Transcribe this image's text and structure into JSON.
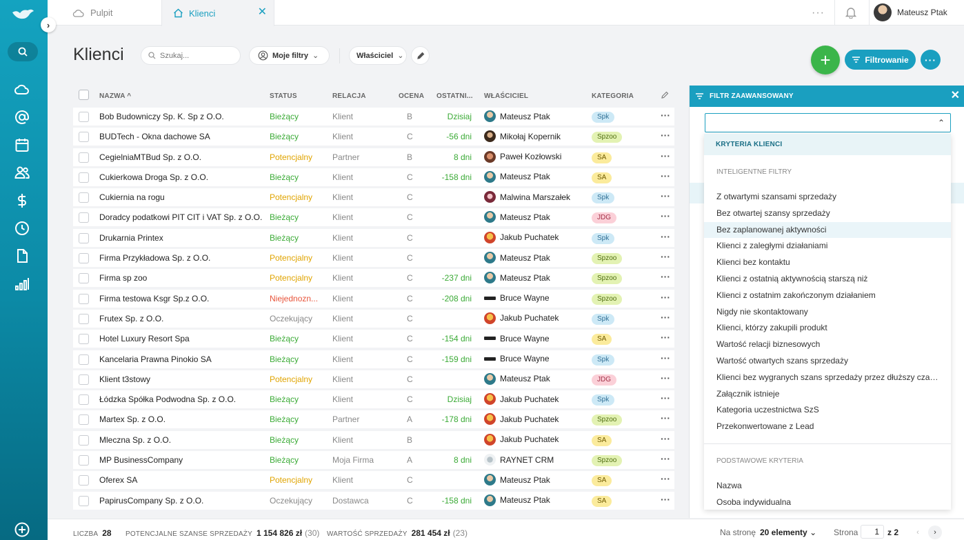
{
  "tabs": {
    "dashboard": "Pulpit",
    "clients": "Klienci"
  },
  "user": {
    "name": "Mateusz Ptak"
  },
  "page": {
    "title": "Klienci"
  },
  "search": {
    "placeholder": "Szukaj..."
  },
  "toolbar": {
    "my_filters": "Moje filtry",
    "owner": "Właściciel",
    "filter_button": "Filtrowanie"
  },
  "table": {
    "headers": {
      "name": "NAZWA",
      "status": "STATUS",
      "relation": "RELACJA",
      "grade": "OCENA",
      "last": "OSTATNI...",
      "owner": "WŁAŚCICIEL",
      "category": "KATEGORIA"
    },
    "rows": [
      {
        "name": "Bob Budowniczy Sp. K. Sp z O.O.",
        "status": "Bieżący",
        "relation": "Klient",
        "grade": "B",
        "last": "Dzisiaj",
        "owner": "Mateusz Ptak",
        "category": "Spk"
      },
      {
        "name": "BUDTech - Okna dachowe SA",
        "status": "Bieżący",
        "relation": "Klient",
        "grade": "C",
        "last": "-56 dni",
        "owner": "Mikołaj Kopernik",
        "category": "Spzoo"
      },
      {
        "name": "CegielniaMTBud Sp. z O.O.",
        "status": "Potencjalny",
        "relation": "Partner",
        "grade": "B",
        "last": "8 dni",
        "owner": "Paweł Kozłowski",
        "category": "SA"
      },
      {
        "name": "Cukierkowa Droga Sp. z O.O.",
        "status": "Bieżący",
        "relation": "Klient",
        "grade": "C",
        "last": "-158 dni",
        "owner": "Mateusz Ptak",
        "category": "SA"
      },
      {
        "name": "Cukiernia na rogu",
        "status": "Potencjalny",
        "relation": "Klient",
        "grade": "C",
        "last": "",
        "owner": "Malwina Marszałek",
        "category": "Spk"
      },
      {
        "name": "Doradcy podatkowi PIT CIT i VAT Sp. z O.O.",
        "status": "Bieżący",
        "relation": "Klient",
        "grade": "C",
        "last": "",
        "owner": "Mateusz Ptak",
        "category": "JDG"
      },
      {
        "name": "Drukarnia Printex",
        "status": "Bieżący",
        "relation": "Klient",
        "grade": "C",
        "last": "",
        "owner": "Jakub Puchatek",
        "category": "Spk"
      },
      {
        "name": "Firma Przykładowa Sp. z O.O.",
        "status": "Potencjalny",
        "relation": "Klient",
        "grade": "C",
        "last": "",
        "owner": "Mateusz Ptak",
        "category": "Spzoo"
      },
      {
        "name": "Firma sp zoo",
        "status": "Potencjalny",
        "relation": "Klient",
        "grade": "C",
        "last": "-237 dni",
        "owner": "Mateusz Ptak",
        "category": "Spzoo"
      },
      {
        "name": "Firma testowa Ksgr Sp.z O.O.",
        "status": "Niejednozn...",
        "relation": "Klient",
        "grade": "C",
        "last": "-208 dni",
        "owner": "Bruce Wayne",
        "category": "Spzoo"
      },
      {
        "name": "Frutex Sp. z O.O.",
        "status": "Oczekujący",
        "relation": "Klient",
        "grade": "C",
        "last": "",
        "owner": "Jakub Puchatek",
        "category": "Spk"
      },
      {
        "name": "Hotel Luxury Resort Spa",
        "status": "Bieżący",
        "relation": "Klient",
        "grade": "C",
        "last": "-154 dni",
        "owner": "Bruce Wayne",
        "category": "SA"
      },
      {
        "name": "Kancelaria Prawna Pinokio SA",
        "status": "Bieżący",
        "relation": "Klient",
        "grade": "C",
        "last": "-159 dni",
        "owner": "Bruce Wayne",
        "category": "Spk"
      },
      {
        "name": "Klient t3stowy",
        "status": "Potencjalny",
        "relation": "Klient",
        "grade": "C",
        "last": "",
        "owner": "Mateusz Ptak",
        "category": "JDG"
      },
      {
        "name": "Łódzka Spółka Podwodna Sp. z O.O.",
        "status": "Bieżący",
        "relation": "Klient",
        "grade": "C",
        "last": "Dzisiaj",
        "owner": "Jakub Puchatek",
        "category": "Spk"
      },
      {
        "name": "Martex Sp. z O.O.",
        "status": "Bieżący",
        "relation": "Partner",
        "grade": "A",
        "last": "-178 dni",
        "owner": "Jakub Puchatek",
        "category": "Spzoo"
      },
      {
        "name": "Mleczna Sp. z O.O.",
        "status": "Bieżący",
        "relation": "Klient",
        "grade": "B",
        "last": "",
        "owner": "Jakub Puchatek",
        "category": "SA"
      },
      {
        "name": "MP BusinessCompany",
        "status": "Bieżący",
        "relation": "Moja Firma",
        "grade": "A",
        "last": "8 dni",
        "owner": "RAYNET CRM",
        "category": "Spzoo"
      },
      {
        "name": "Oferex SA",
        "status": "Potencjalny",
        "relation": "Klient",
        "grade": "C",
        "last": "",
        "owner": "Mateusz Ptak",
        "category": "SA"
      },
      {
        "name": "PapirusCompany Sp. z O.O.",
        "status": "Oczekujący",
        "relation": "Dostawca",
        "grade": "C",
        "last": "-158 dni",
        "owner": "Mateusz Ptak",
        "category": "SA"
      }
    ]
  },
  "filter_panel": {
    "title": "FILTR ZAAWANSOWANY",
    "dropdown_header": "KRYTERIA KLIENCI",
    "group_smart": "INTELIGENTNE FILTRY",
    "smart_items": [
      "Z otwartymi szansami sprzedaży",
      "Bez otwartej szansy sprzedaży",
      "Bez zaplanowanej aktywności",
      "Klienci z zaległymi działaniami",
      "Klienci bez kontaktu",
      "Klienci z ostatnią aktywnością starszą niż",
      "Klienci z ostatnim zakończonym działaniem",
      "Nigdy nie skontaktowany",
      "Klienci, którzy zakupili produkt",
      "Wartość relacji biznesowych",
      "Wartość otwartych szans sprzedaży",
      "Klienci bez wygranych szans sprzedaży przez dłuższy czas ...",
      "Załącznik istnieje",
      "Kategoria uczestnictwa SzS",
      "Przekonwertowane z Lead"
    ],
    "highlighted_index": 2,
    "group_basic": "PODSTAWOWE KRYTERIA",
    "basic_items": [
      "Nazwa",
      "Osoba indywidualna"
    ]
  },
  "footer": {
    "count_label": "LICZBA",
    "count": "28",
    "potential_label": "POTENCJALNE SZANSE SPRZEDAŻY",
    "potential_value": "1 154 826 zł",
    "potential_count": "(30)",
    "sales_label": "WARTOŚĆ SPRZEDAŻY",
    "sales_value": "281 454 zł",
    "sales_count": "(23)",
    "per_page_label": "Na stronę",
    "per_page_value": "20 elementy",
    "page_label": "Strona",
    "page_current": "1",
    "page_of": "z",
    "page_total": "2"
  },
  "colors": {
    "accent": "#1a9fc0",
    "add_button": "#3bb54a",
    "status_current": "#3aaa35",
    "status_potential": "#e0a400",
    "status_ambiguous": "#e8543b",
    "status_waiting": "#888888",
    "cat_spk_bg": "#cde9f6",
    "cat_spzoo_bg": "#e3f2b3",
    "cat_sa_bg": "#fbeb9c",
    "cat_jdg_bg": "#fbd0d8"
  },
  "icons": {
    "logo": "bird-logo-icon",
    "sidebar": [
      "search-icon",
      "cloud-icon",
      "at-icon",
      "calendar-icon",
      "users-icon",
      "dollar-icon",
      "clock-icon",
      "document-icon",
      "chart-icon",
      "plus-circle-icon"
    ]
  }
}
